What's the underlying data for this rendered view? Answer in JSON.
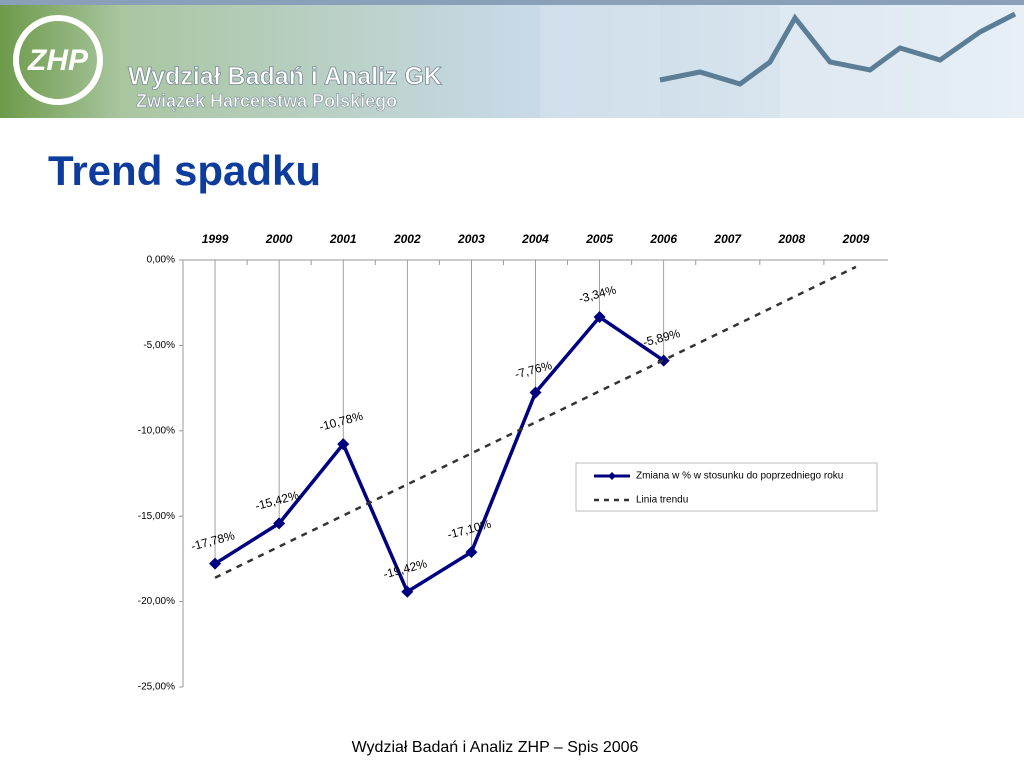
{
  "header": {
    "logo": "ZHP",
    "title": "Wydział Badań i Analiz GK",
    "subtitle": "Związek Harcerstwa Polskiego"
  },
  "slide_title": "Trend spadku",
  "chart_data": {
    "type": "line",
    "categories": [
      "1999",
      "2000",
      "2001",
      "2002",
      "2003",
      "2004",
      "2005",
      "2006",
      "2007",
      "2008",
      "2009"
    ],
    "series": [
      {
        "name": "Zmiana w % w stosunku do poprzedniego roku",
        "color": "#000080",
        "marker": "diamond",
        "values": [
          -17.78,
          -15.42,
          -10.78,
          -19.42,
          -17.1,
          -7.76,
          -3.34,
          -5.89,
          null,
          null,
          null
        ],
        "value_labels": [
          "-17,78%",
          "-15,42%",
          "-10,78%",
          "-19,42%",
          "-17,10%",
          "-7,76%",
          "-3,34%",
          "-5,89%",
          null,
          null,
          null
        ]
      },
      {
        "name": "Linia trendu",
        "color": "#333333",
        "dash": true,
        "values": [
          -18.6,
          -16.78,
          -14.96,
          -13.14,
          -11.32,
          -9.5,
          -7.68,
          -5.86,
          -4.04,
          -2.22,
          -0.4
        ]
      }
    ],
    "ylim": [
      -25,
      0
    ],
    "yticks": [
      {
        "value": 0,
        "label": "0,00%"
      },
      {
        "value": -5,
        "label": "-5,00%"
      },
      {
        "value": -10,
        "label": "-10,00%"
      },
      {
        "value": -15,
        "label": "-15,00%"
      },
      {
        "value": -20,
        "label": "-20,00%"
      },
      {
        "value": -25,
        "label": "-25,00%"
      }
    ],
    "legend": "right"
  },
  "footer": "Wydział Badań i Analiz ZHP – Spis 2006"
}
